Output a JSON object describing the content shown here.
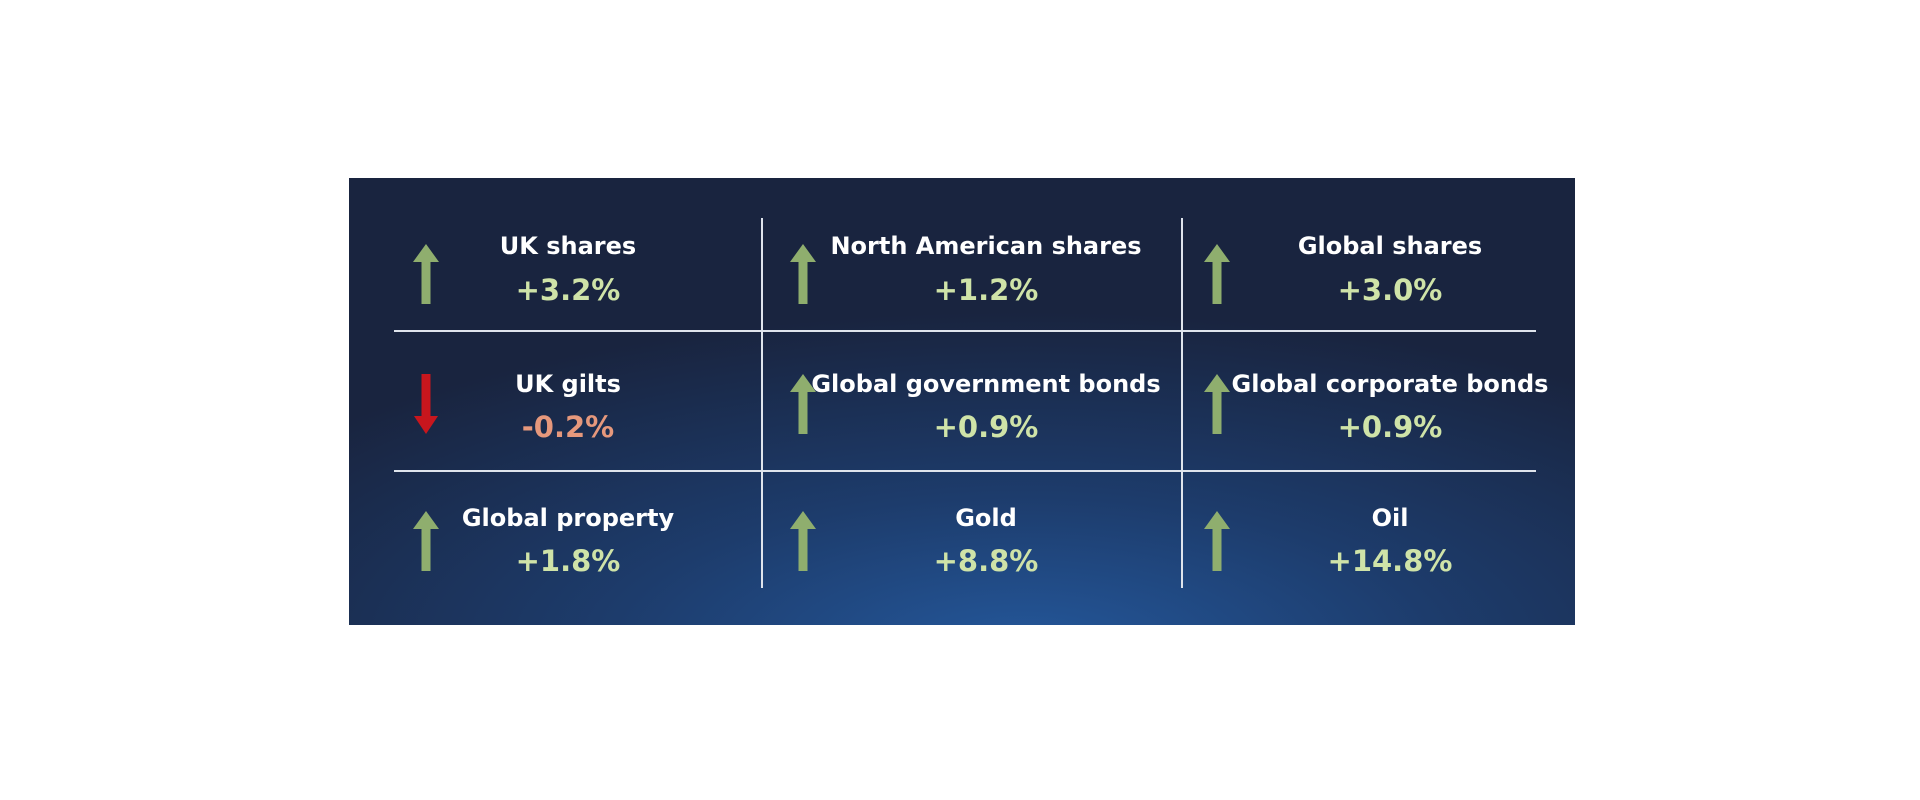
{
  "cells": [
    {
      "label": "UK shares",
      "value": "+3.2%"
    },
    {
      "label": "North American shares",
      "value": "+1.2%"
    },
    {
      "label": "Global shares",
      "value": "+3.0%"
    },
    {
      "label": "UK gilts",
      "value": "-0.2%"
    },
    {
      "label": "Global government bonds",
      "value": "+0.9%"
    },
    {
      "label": "Global corporate bonds",
      "value": "+0.9%"
    },
    {
      "label": "Global property",
      "value": "+1.8%"
    },
    {
      "label": "Gold",
      "value": "+8.8%"
    },
    {
      "label": "Oil",
      "value": "+14.8%"
    }
  ]
}
